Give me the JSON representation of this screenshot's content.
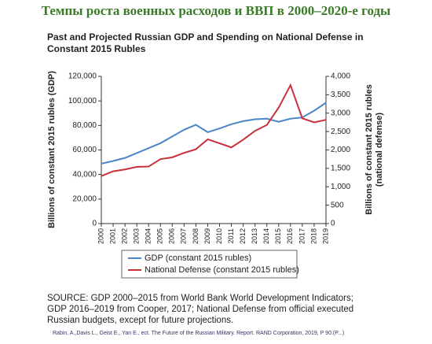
{
  "header": "Темпы роста военных расходов и ВВП в 2000–2020-е годы",
  "chart_data": {
    "type": "line",
    "title": [
      "Past and Projected Russian GDP and Spending on National Defense in",
      "Constant 2015 Rubles"
    ],
    "ylabel": "Billions of constant 2015 rubles (GDP)",
    "y2label": [
      "Billions of constant 2015 rubles",
      "(national defense)"
    ],
    "categories": [
      "2000",
      "2001",
      "2002",
      "2003",
      "2004",
      "2005",
      "2006",
      "2007",
      "2008",
      "2009",
      "2010",
      "2011",
      "2012",
      "2013",
      "2014",
      "2015",
      "2016",
      "2017",
      "2018",
      "2019"
    ],
    "series": [
      {
        "name": "GDP (constant 2015 rubles)",
        "color": "#4a86c8",
        "values": [
          48800,
          51000,
          53500,
          57500,
          61500,
          65500,
          71000,
          76500,
          80500,
          74500,
          77500,
          81000,
          83500,
          85000,
          85500,
          83000,
          85500,
          86500,
          92000,
          98500
        ]
      },
      {
        "name": "National Defense (constant 2015 rubles)",
        "color": "#c8303a",
        "axis": "y2",
        "values": [
          1290,
          1420,
          1470,
          1540,
          1550,
          1750,
          1800,
          1920,
          2020,
          2290,
          2180,
          2070,
          2280,
          2520,
          2680,
          3150,
          3760,
          2860,
          2750,
          2820
        ]
      }
    ],
    "ylim": [
      0,
      120000
    ],
    "yticks": [
      0,
      {
        "value": 20000,
        "label": "20,000"
      },
      {
        "value": 40000,
        "label": "40,000"
      },
      {
        "value": 60000,
        "label": "60,000"
      },
      {
        "value": 80000,
        "label": "80,000"
      },
      {
        "value": 100000,
        "label": "100,000"
      },
      {
        "value": 120000,
        "label": "120,000"
      }
    ],
    "y2lim": [
      0,
      4000
    ],
    "y2ticks": [
      0,
      500,
      {
        "value": 1000,
        "label": "1,000"
      },
      {
        "value": 1500,
        "label": "1,500"
      },
      {
        "value": 2000,
        "label": "2,000"
      },
      {
        "value": 2500,
        "label": "2,500"
      },
      {
        "value": 3000,
        "label": "3,000"
      },
      {
        "value": 3500,
        "label": "3,500"
      },
      {
        "value": 4000,
        "label": "4,000"
      }
    ],
    "grid": false,
    "legend": "bottom"
  },
  "source": [
    "SOURCE: GDP 2000–2015 from World Bank World Development Indicators;",
    "GDP 2016–2019 from Cooper, 2017; National Defense from official executed",
    "Russian budgets, except for future projections."
  ],
  "citation": "Rabin, A.,Davis L., Geist E., Yan E., ect. The Future of the Russian Military. Report. RAND Corporation, 2019, P 90.(P...)"
}
